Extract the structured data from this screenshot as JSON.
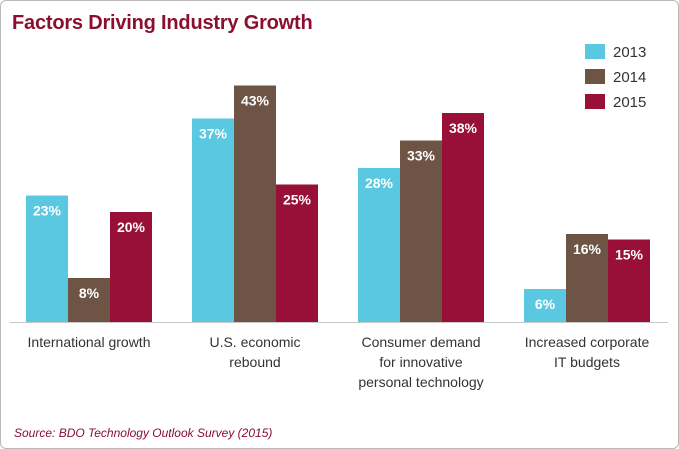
{
  "page": {
    "source": "Source: BDO Technology Outlook Survey (2015)"
  },
  "chart_data": {
    "type": "bar",
    "title": "Factors Driving Industry Growth",
    "categories": [
      [
        "International growth"
      ],
      [
        "U.S. economic",
        "rebound"
      ],
      [
        "Consumer demand",
        "for innovative",
        "personal technology"
      ],
      [
        "Increased corporate",
        "IT budgets"
      ]
    ],
    "series": [
      {
        "name": "2013",
        "color": "#5bc8e2",
        "values": [
          23,
          37,
          28,
          6
        ],
        "labels": [
          "23%",
          "37%",
          "28%",
          "6%"
        ]
      },
      {
        "name": "2014",
        "color": "#6e5444",
        "values": [
          8,
          43,
          33,
          16
        ],
        "labels": [
          "8%",
          "43%",
          "33%",
          "16%"
        ]
      },
      {
        "name": "2015",
        "color": "#980f37",
        "values": [
          20,
          25,
          38,
          15
        ],
        "labels": [
          "20%",
          "25%",
          "38%",
          "15%"
        ]
      }
    ],
    "ylim": [
      0,
      48
    ],
    "grid": false,
    "legend_position": "top-right",
    "axis_line_color": "#c8c8c8"
  }
}
